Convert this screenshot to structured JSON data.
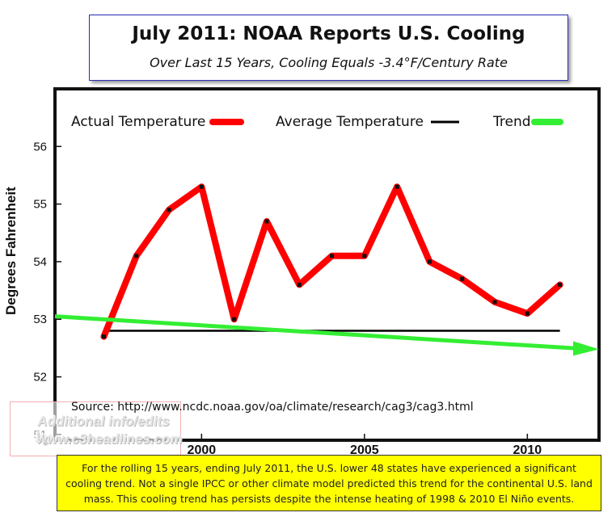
{
  "chart_data": {
    "type": "line",
    "title": "July 2011: NOAA Reports U.S. Cooling",
    "subtitle": "Over Last 15 Years, Cooling Equals -3.4°F/Century Rate",
    "ylabel": "Degrees Fahrenheit",
    "xlabel": "",
    "xlim": [
      1995.5,
      2012.2
    ],
    "ylim": [
      50.9,
      57.0
    ],
    "y_ticks": [
      51,
      52,
      53,
      54,
      55,
      56
    ],
    "x_ticks": [
      2000,
      2005,
      2010
    ],
    "grid": false,
    "legend_placement": "top",
    "series": [
      {
        "name": "Actual Temperature",
        "color": "#ff0000",
        "x": [
          1997,
          1998,
          1999,
          2000,
          2001,
          2002,
          2003,
          2004,
          2005,
          2006,
          2007,
          2008,
          2009,
          2010,
          2011
        ],
        "values": [
          52.7,
          54.1,
          54.9,
          55.3,
          53.0,
          54.7,
          53.6,
          54.1,
          54.1,
          55.3,
          54.0,
          53.7,
          53.3,
          53.1,
          53.6
        ]
      },
      {
        "name": "Average Temperature",
        "color": "#000000",
        "x": [
          1997,
          2011
        ],
        "values": [
          52.8,
          52.8
        ]
      },
      {
        "name": "Trend",
        "color": "#33ee33",
        "x": [
          1995.5,
          2012.2
        ],
        "values": [
          53.05,
          52.48
        ]
      }
    ],
    "source": "Source:  http://www.ncdc.noaa.gov/oa/climate/research/cag3/cag3.html",
    "note": "For the rolling 15 years, ending July 2011, the U.S. lower 48 states have experienced a significant cooling trend. Not a single IPCC or other climate model predicted this trend for the continental U.S. land mass. This cooling trend has persists despite the intense heating of 1998 & 2010 El Niño events."
  },
  "watermark": {
    "line1": "Additional info/edits by",
    "line2": "www.c3headlines.com"
  }
}
